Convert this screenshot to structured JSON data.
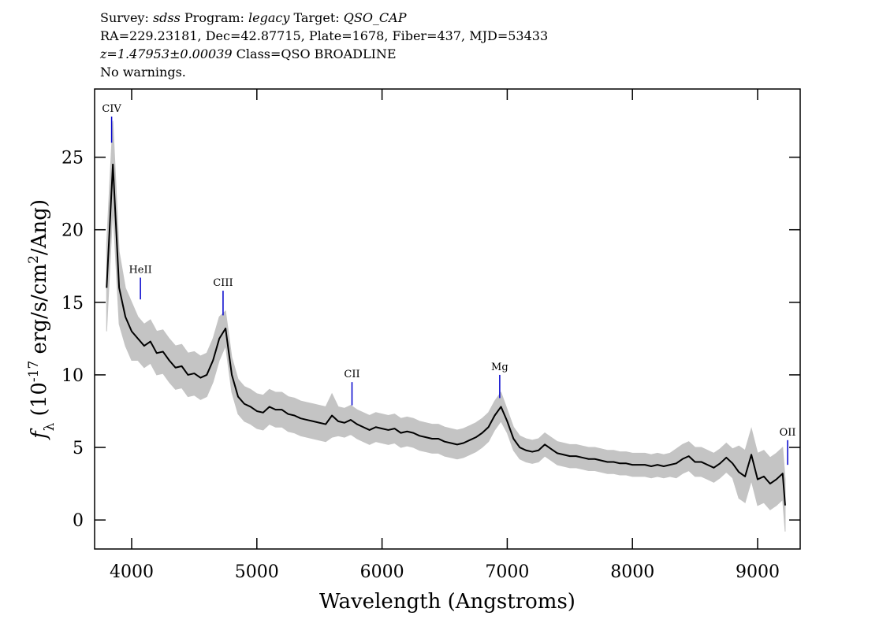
{
  "chart_data": {
    "type": "line",
    "title_lines": [
      [
        {
          "text": "Survey: ",
          "italic": false
        },
        {
          "text": "sdss",
          "italic": true
        },
        {
          "text": " Program: ",
          "italic": false
        },
        {
          "text": "legacy",
          "italic": true
        },
        {
          "text": " Target: ",
          "italic": false
        },
        {
          "text": "QSO_CAP",
          "italic": true
        }
      ],
      [
        {
          "text": "RA=229.23181, Dec=42.87715, Plate=1678, Fiber=437, MJD=53433",
          "italic": false
        }
      ],
      [
        {
          "text": "z=1.47953±0.00039",
          "italic": true
        },
        {
          "text": " Class=QSO BROADLINE",
          "italic": false
        }
      ],
      [
        {
          "text": "No warnings.",
          "italic": false
        }
      ]
    ],
    "xlabel": "Wavelength (Angstroms)",
    "ylabel": [
      {
        "text": "f",
        "style": "italic"
      },
      {
        "text": "λ",
        "style": "sub"
      },
      {
        "text": " (10",
        "style": "normal"
      },
      {
        "text": "-17",
        "style": "sup"
      },
      {
        "text": " erg/s/cm",
        "style": "normal"
      },
      {
        "text": "2",
        "style": "sup"
      },
      {
        "text": "/Ang)",
        "style": "normal"
      }
    ],
    "xlim": [
      3704,
      9340
    ],
    "ylim": [
      -2,
      29.7
    ],
    "xticks": [
      4000,
      5000,
      6000,
      7000,
      8000,
      9000
    ],
    "yticks": [
      0,
      5,
      10,
      15,
      20,
      25
    ],
    "x": [
      3800,
      3850,
      3900,
      3950,
      4000,
      4050,
      4100,
      4150,
      4200,
      4250,
      4300,
      4350,
      4400,
      4450,
      4500,
      4550,
      4600,
      4650,
      4700,
      4750,
      4800,
      4850,
      4900,
      4950,
      5000,
      5050,
      5100,
      5150,
      5200,
      5250,
      5300,
      5350,
      5400,
      5450,
      5500,
      5550,
      5600,
      5650,
      5700,
      5750,
      5800,
      5850,
      5900,
      5950,
      6000,
      6050,
      6100,
      6150,
      6200,
      6250,
      6300,
      6350,
      6400,
      6450,
      6500,
      6550,
      6600,
      6650,
      6700,
      6750,
      6800,
      6850,
      6900,
      6950,
      7000,
      7050,
      7100,
      7150,
      7200,
      7250,
      7300,
      7350,
      7400,
      7450,
      7500,
      7550,
      7600,
      7650,
      7700,
      7750,
      7800,
      7850,
      7900,
      7950,
      8000,
      8050,
      8100,
      8150,
      8200,
      8250,
      8300,
      8350,
      8400,
      8450,
      8500,
      8550,
      8600,
      8650,
      8700,
      8750,
      8800,
      8850,
      8900,
      8950,
      9000,
      9050,
      9100,
      9150,
      9200,
      9220
    ],
    "band": {
      "color": "#c4c4c4",
      "upper": [
        19,
        27.5,
        18.5,
        16,
        15,
        14,
        13.5,
        13.8,
        13,
        13.1,
        12.5,
        12,
        12.1,
        11.5,
        11.6,
        11.3,
        11.5,
        12.5,
        14,
        14.4,
        11.2,
        9.7,
        9.2,
        9,
        8.7,
        8.6,
        9,
        8.8,
        8.8,
        8.5,
        8.4,
        8.2,
        8.1,
        8,
        7.9,
        7.8,
        8.7,
        7.8,
        7.7,
        7.9,
        7.6,
        7.4,
        7.2,
        7.4,
        7.3,
        7.2,
        7.3,
        7,
        7.1,
        7,
        6.8,
        6.7,
        6.6,
        6.6,
        6.4,
        6.3,
        6.2,
        6.3,
        6.5,
        6.7,
        7,
        7.4,
        8.2,
        8.8,
        7.6,
        6.4,
        5.8,
        5.6,
        5.5,
        5.6,
        6,
        5.7,
        5.4,
        5.3,
        5.2,
        5.2,
        5.1,
        5,
        5,
        4.9,
        4.8,
        4.8,
        4.7,
        4.7,
        4.6,
        4.6,
        4.6,
        4.5,
        4.6,
        4.5,
        4.6,
        4.9,
        5.2,
        5.4,
        5,
        5,
        4.8,
        4.6,
        4.9,
        5.3,
        4.9,
        5.1,
        4.8,
        6.3,
        4.6,
        4.8,
        4.3,
        4.6,
        5,
        2.8
      ],
      "lower": [
        13,
        21.5,
        13.5,
        12,
        11,
        11,
        10.5,
        10.8,
        10,
        10.1,
        9.5,
        9,
        9.1,
        8.5,
        8.6,
        8.3,
        8.5,
        9.5,
        11,
        12,
        8.8,
        7.3,
        6.8,
        6.6,
        6.3,
        6.2,
        6.6,
        6.4,
        6.4,
        6.1,
        6,
        5.8,
        5.7,
        5.6,
        5.5,
        5.4,
        5.7,
        5.8,
        5.7,
        5.9,
        5.6,
        5.4,
        5.2,
        5.4,
        5.3,
        5.2,
        5.3,
        5,
        5.1,
        5,
        4.8,
        4.7,
        4.6,
        4.6,
        4.4,
        4.3,
        4.2,
        4.3,
        4.5,
        4.7,
        5,
        5.4,
        6.2,
        6.8,
        6,
        4.8,
        4.2,
        4,
        3.9,
        4,
        4.4,
        4.1,
        3.8,
        3.7,
        3.6,
        3.6,
        3.5,
        3.4,
        3.4,
        3.3,
        3.2,
        3.2,
        3.1,
        3.1,
        3,
        3,
        3,
        2.9,
        3,
        2.9,
        3,
        2.9,
        3.2,
        3.4,
        3,
        3,
        2.8,
        2.6,
        2.9,
        3.3,
        2.9,
        1.5,
        1.2,
        2.7,
        1,
        1.2,
        0.7,
        1,
        1.4,
        -0.8
      ]
    },
    "series": [
      {
        "color": "#000000",
        "values": [
          16,
          24.5,
          16,
          14,
          13,
          12.5,
          12,
          12.3,
          11.5,
          11.6,
          11,
          10.5,
          10.6,
          10,
          10.1,
          9.8,
          10,
          11,
          12.5,
          13.2,
          10,
          8.5,
          8,
          7.8,
          7.5,
          7.4,
          7.8,
          7.6,
          7.6,
          7.3,
          7.2,
          7,
          6.9,
          6.8,
          6.7,
          6.6,
          7.2,
          6.8,
          6.7,
          6.9,
          6.6,
          6.4,
          6.2,
          6.4,
          6.3,
          6.2,
          6.3,
          6,
          6.1,
          6,
          5.8,
          5.7,
          5.6,
          5.6,
          5.4,
          5.3,
          5.2,
          5.3,
          5.5,
          5.7,
          6,
          6.4,
          7.2,
          7.8,
          6.8,
          5.6,
          5,
          4.8,
          4.7,
          4.8,
          5.2,
          4.9,
          4.6,
          4.5,
          4.4,
          4.4,
          4.3,
          4.2,
          4.2,
          4.1,
          4,
          4,
          3.9,
          3.9,
          3.8,
          3.8,
          3.8,
          3.7,
          3.8,
          3.7,
          3.8,
          3.9,
          4.2,
          4.4,
          4,
          4,
          3.8,
          3.6,
          3.9,
          4.3,
          3.9,
          3.3,
          3,
          4.5,
          2.8,
          3,
          2.5,
          2.8,
          3.2,
          1
        ]
      }
    ],
    "line_color": "#0000cc",
    "lines": [
      {
        "label": "CIV",
        "x": 3840,
        "ymin": 26.0,
        "ymax": 27.8
      },
      {
        "label": "HeII",
        "x": 4070,
        "ymin": 15.2,
        "ymax": 16.7
      },
      {
        "label": "CIII",
        "x": 4730,
        "ymin": 14.1,
        "ymax": 15.8
      },
      {
        "label": "CII",
        "x": 5760,
        "ymin": 7.9,
        "ymax": 9.5
      },
      {
        "label": "Mg",
        "x": 6940,
        "ymin": 8.4,
        "ymax": 10.0
      },
      {
        "label": "OII",
        "x": 9240,
        "ymin": 3.8,
        "ymax": 5.5
      }
    ]
  }
}
